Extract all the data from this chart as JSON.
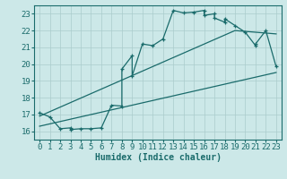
{
  "title": "",
  "xlabel": "Humidex (Indice chaleur)",
  "ylabel": "",
  "xlim": [
    -0.5,
    23.5
  ],
  "ylim": [
    15.5,
    23.5
  ],
  "xticks": [
    0,
    1,
    2,
    3,
    4,
    5,
    6,
    7,
    8,
    9,
    10,
    11,
    12,
    13,
    14,
    15,
    16,
    17,
    18,
    19,
    20,
    21,
    22,
    23
  ],
  "yticks": [
    16,
    17,
    18,
    19,
    20,
    21,
    22,
    23
  ],
  "bg_color": "#cce8e8",
  "grid_color": "#aacccc",
  "line_color": "#1a6b6b",
  "main_line_x": [
    0,
    1,
    2,
    3,
    3,
    4,
    5,
    6,
    7,
    8,
    8,
    9,
    9,
    10,
    11,
    12,
    13,
    14,
    15,
    16,
    16,
    17,
    17,
    18,
    18,
    19,
    20,
    21,
    21,
    22,
    23
  ],
  "main_line_y": [
    17.1,
    16.85,
    16.15,
    16.2,
    16.1,
    16.15,
    16.15,
    16.2,
    17.55,
    17.5,
    19.7,
    20.5,
    19.3,
    21.2,
    21.1,
    21.5,
    23.2,
    23.05,
    23.1,
    23.2,
    22.9,
    23.0,
    22.75,
    22.5,
    22.7,
    22.3,
    21.9,
    21.1,
    21.2,
    22.0,
    19.85
  ],
  "upper_line_x": [
    0,
    19,
    23
  ],
  "upper_line_y": [
    16.9,
    22.0,
    21.8
  ],
  "lower_line_x": [
    0,
    23
  ],
  "lower_line_y": [
    16.3,
    19.5
  ],
  "font_size": 7,
  "tick_font_size": 6.5
}
